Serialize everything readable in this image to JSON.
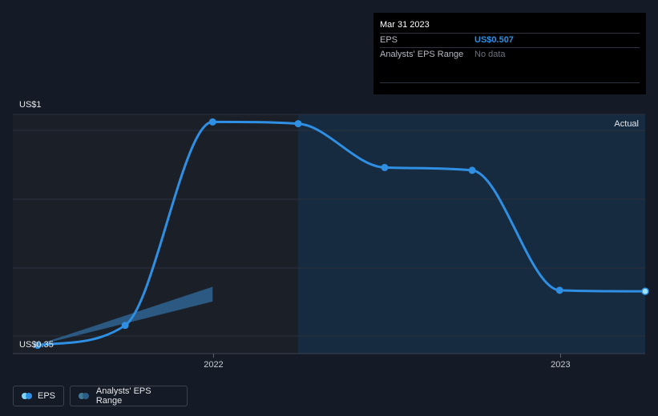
{
  "tooltip": {
    "date": "Mar 31 2023",
    "rows": [
      {
        "label": "EPS",
        "value": "US$0.507"
      },
      {
        "label": "Analysts' EPS Range",
        "value": "No data"
      }
    ]
  },
  "legend": {
    "eps_label": "EPS",
    "range_label": "Analysts' EPS Range"
  },
  "colors": {
    "background": "#151b26",
    "eps_line": "#2e8fe3",
    "forecast_band": "#2c5d86",
    "actual_region": "#162a40",
    "past_region": "#1b1f27"
  },
  "chart_data": {
    "type": "line",
    "ylim": [
      0.35,
      1
    ],
    "y_tick_labels": [
      "US$1",
      "US$0.35"
    ],
    "x_tick_labels": [
      "2022",
      "2023"
    ],
    "region_label": "Actual",
    "series": [
      {
        "name": "EPS",
        "points": [
          {
            "date": "2021-06-30",
            "value": 0.353
          },
          {
            "date": "2021-09-30",
            "value": 0.41
          },
          {
            "date": "2021-12-31",
            "value": 0.99
          },
          {
            "date": "2022-03-31",
            "value": 0.985
          },
          {
            "date": "2022-06-30",
            "value": 0.86
          },
          {
            "date": "2022-09-30",
            "value": 0.852
          },
          {
            "date": "2022-12-31",
            "value": 0.51
          },
          {
            "date": "2023-03-31",
            "value": 0.507
          }
        ]
      },
      {
        "name": "Analysts' EPS Range",
        "band": [
          {
            "date": "2021-06-30",
            "low": 0.353,
            "high": 0.355
          },
          {
            "date": "2021-12-31",
            "low": 0.478,
            "high": 0.52
          }
        ]
      }
    ]
  }
}
